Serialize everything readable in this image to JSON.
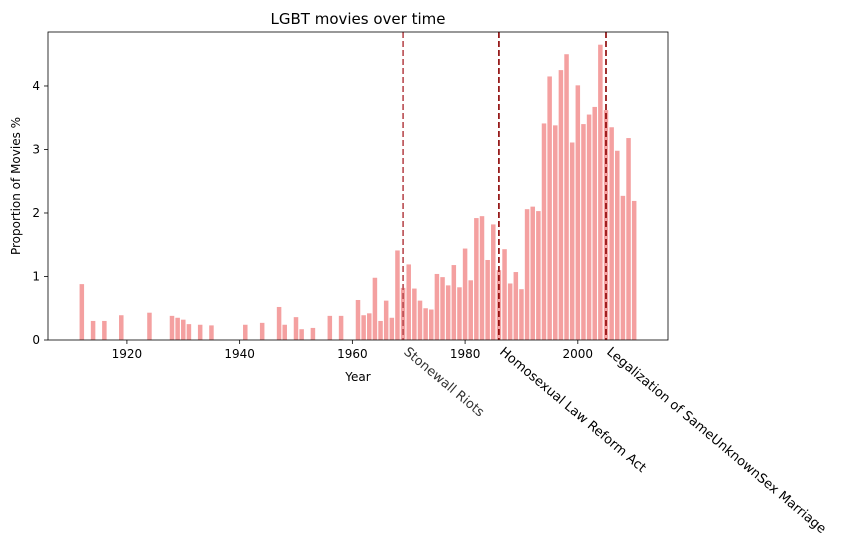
{
  "chart_data": {
    "type": "bar",
    "title": "LGBT movies over time",
    "xlabel": "Year",
    "ylabel": "Proportion of Movies %",
    "xlim": [
      1906,
      2016
    ],
    "ylim": [
      0,
      4.85
    ],
    "xticks": [
      1920,
      1940,
      1960,
      1980,
      2000
    ],
    "yticks": [
      0,
      1,
      2,
      3,
      4
    ],
    "bar_color": "#f08080",
    "grid": false,
    "legend": "none",
    "x": [
      1912,
      1914,
      1916,
      1919,
      1924,
      1928,
      1929,
      1930,
      1931,
      1933,
      1935,
      1941,
      1944,
      1947,
      1948,
      1950,
      1951,
      1953,
      1956,
      1958,
      1961,
      1962,
      1963,
      1964,
      1965,
      1966,
      1967,
      1968,
      1969,
      1970,
      1971,
      1972,
      1973,
      1974,
      1975,
      1976,
      1977,
      1978,
      1979,
      1980,
      1981,
      1982,
      1983,
      1984,
      1985,
      1986,
      1987,
      1988,
      1989,
      1990,
      1991,
      1992,
      1993,
      1994,
      1995,
      1996,
      1997,
      1998,
      1999,
      2000,
      2001,
      2002,
      2003,
      2004,
      2005,
      2006,
      2007,
      2008,
      2009,
      2010
    ],
    "values": [
      0.88,
      0.3,
      0.3,
      0.39,
      0.43,
      0.38,
      0.35,
      0.32,
      0.25,
      0.24,
      0.23,
      0.24,
      0.27,
      0.52,
      0.24,
      0.36,
      0.17,
      0.19,
      0.38,
      0.38,
      0.63,
      0.39,
      0.42,
      0.98,
      0.3,
      0.62,
      0.35,
      1.41,
      0.82,
      1.19,
      0.81,
      0.62,
      0.5,
      0.48,
      1.04,
      0.99,
      0.86,
      1.18,
      0.83,
      1.44,
      0.94,
      1.92,
      1.95,
      1.26,
      1.82,
      1.1,
      1.43,
      0.89,
      1.07,
      0.8,
      2.06,
      2.1,
      2.03,
      3.41,
      4.15,
      3.38,
      4.25,
      4.5,
      3.11,
      4.01,
      3.4,
      3.55,
      3.67,
      4.65,
      3.62,
      3.35,
      2.98,
      2.27,
      3.18,
      2.19
    ],
    "vlines": [
      {
        "x": 1969,
        "label": "Stonewall Riots",
        "color": "#b94a4f"
      },
      {
        "x": 1986,
        "label": "Homosexual Law Reform Act",
        "color": "#8b0000"
      },
      {
        "x": 2005,
        "label": "Legalization of SameUnknownSex Marriage",
        "color": "#8b0000"
      }
    ]
  }
}
